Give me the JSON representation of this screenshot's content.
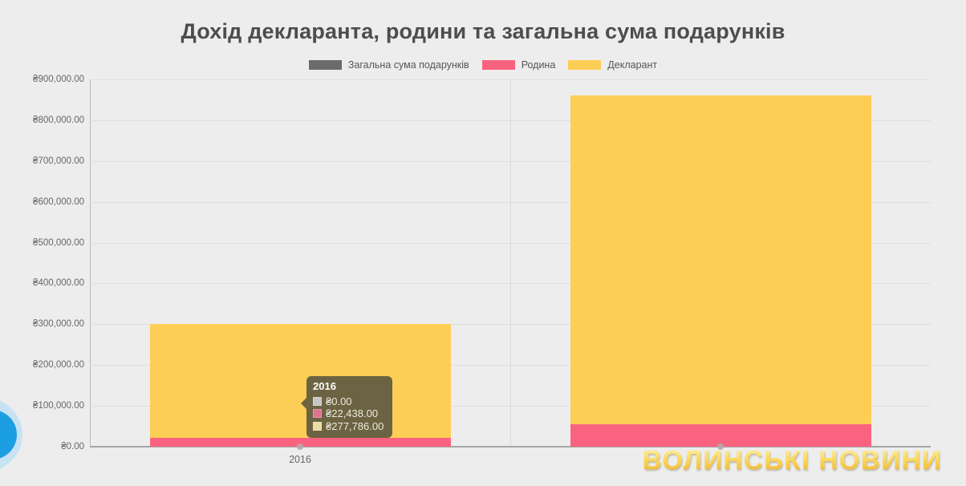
{
  "title": {
    "text": "Дохід декларанта, родини та загальна сума подарунків"
  },
  "legend": {
    "items": [
      {
        "label": "Загальна сума подарунків",
        "color": "#6B6B6B"
      },
      {
        "label": "Родина",
        "color": "#FA6380"
      },
      {
        "label": "Декларант",
        "color": "#FDCE55"
      }
    ]
  },
  "chart_data": {
    "type": "bar",
    "stacked": true,
    "title": "Дохід декларанта, родини та загальна сума подарунків",
    "xlabel": "",
    "ylabel": "",
    "currency": "₴",
    "categories": [
      "2016",
      ""
    ],
    "x_tick_labels": [
      "2016",
      ""
    ],
    "series": [
      {
        "name": "Загальна сума подарунків",
        "color": "#6B6B6B",
        "values": [
          0,
          0
        ]
      },
      {
        "name": "Родина",
        "color": "#FA6380",
        "values": [
          22438,
          55000
        ]
      },
      {
        "name": "Декларант",
        "color": "#FDCE55",
        "values": [
          277786,
          805000
        ]
      }
    ],
    "ylim": [
      0,
      900000
    ],
    "ytick_step": 100000,
    "ytick_labels": [
      "₴0.00",
      "₴100,000.00",
      "₴200,000.00",
      "₴300,000.00",
      "₴400,000.00",
      "₴500,000.00",
      "₴600,000.00",
      "₴700,000.00",
      "₴800,000.00",
      "₴900,000.00"
    ],
    "grid": true,
    "legend_position": "top"
  },
  "tooltip": {
    "header": "2016",
    "rows": [
      {
        "swatch_color": "#C6C6C6",
        "value": "₴0.00"
      },
      {
        "swatch_color": "#DE7490",
        "value": "₴22,438.00"
      },
      {
        "swatch_color": "#EADBA4",
        "value": "₴277,786.00"
      }
    ]
  },
  "watermark": {
    "text": "ВОЛИНСЬКІ НОВИНИ"
  }
}
